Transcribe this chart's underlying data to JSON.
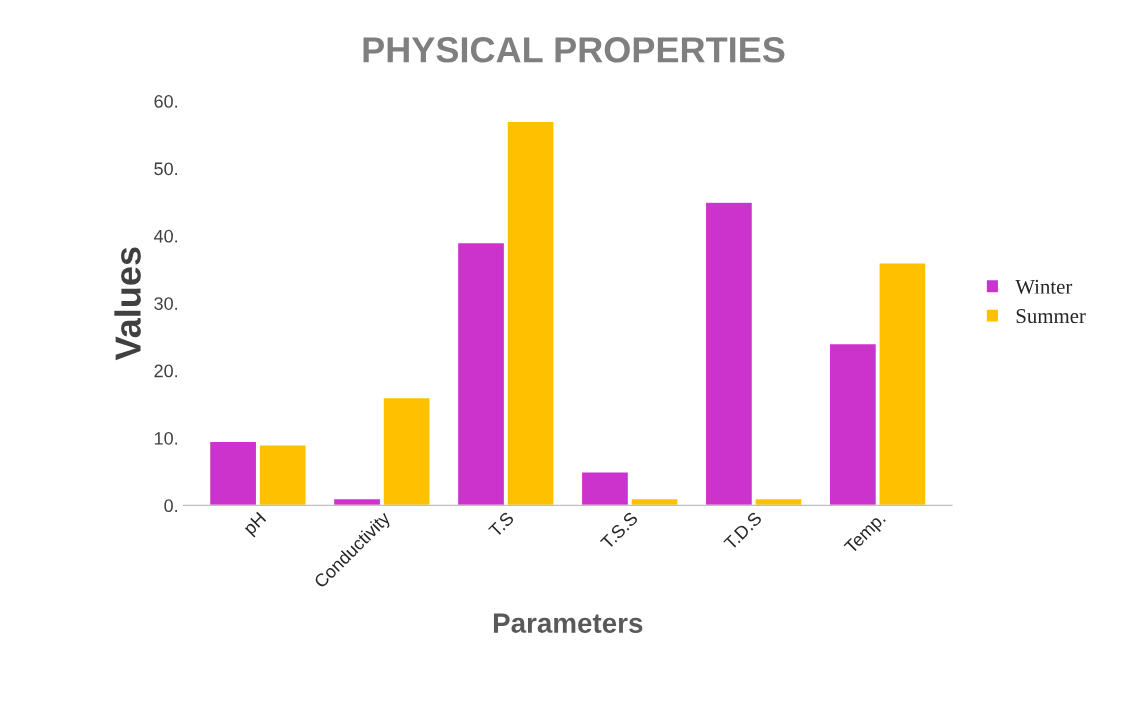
{
  "chart_data": {
    "type": "bar",
    "title": "PHYSICAL PROPERTIES",
    "xlabel": "Parameters",
    "ylabel": "Values",
    "categories": [
      "pH",
      "Conductivity",
      "T.S",
      "T.S.S",
      "T.D.S",
      "Temp."
    ],
    "series": [
      {
        "name": "Winter",
        "color": "#cc33cc",
        "values": [
          9.5,
          1,
          39,
          5,
          45,
          24
        ]
      },
      {
        "name": "Summer",
        "color": "#ffc000",
        "values": [
          9,
          16,
          57,
          1,
          1,
          36
        ]
      }
    ],
    "ylim": [
      0,
      60
    ],
    "yticks": [
      {
        "value": 0,
        "label": "0."
      },
      {
        "value": 10,
        "label": "10."
      },
      {
        "value": 20,
        "label": "20."
      },
      {
        "value": 30,
        "label": "30."
      },
      {
        "value": 40,
        "label": "40."
      },
      {
        "value": 50,
        "label": "50."
      },
      {
        "value": 60,
        "label": "60."
      }
    ],
    "grid": false,
    "legend": "right"
  }
}
